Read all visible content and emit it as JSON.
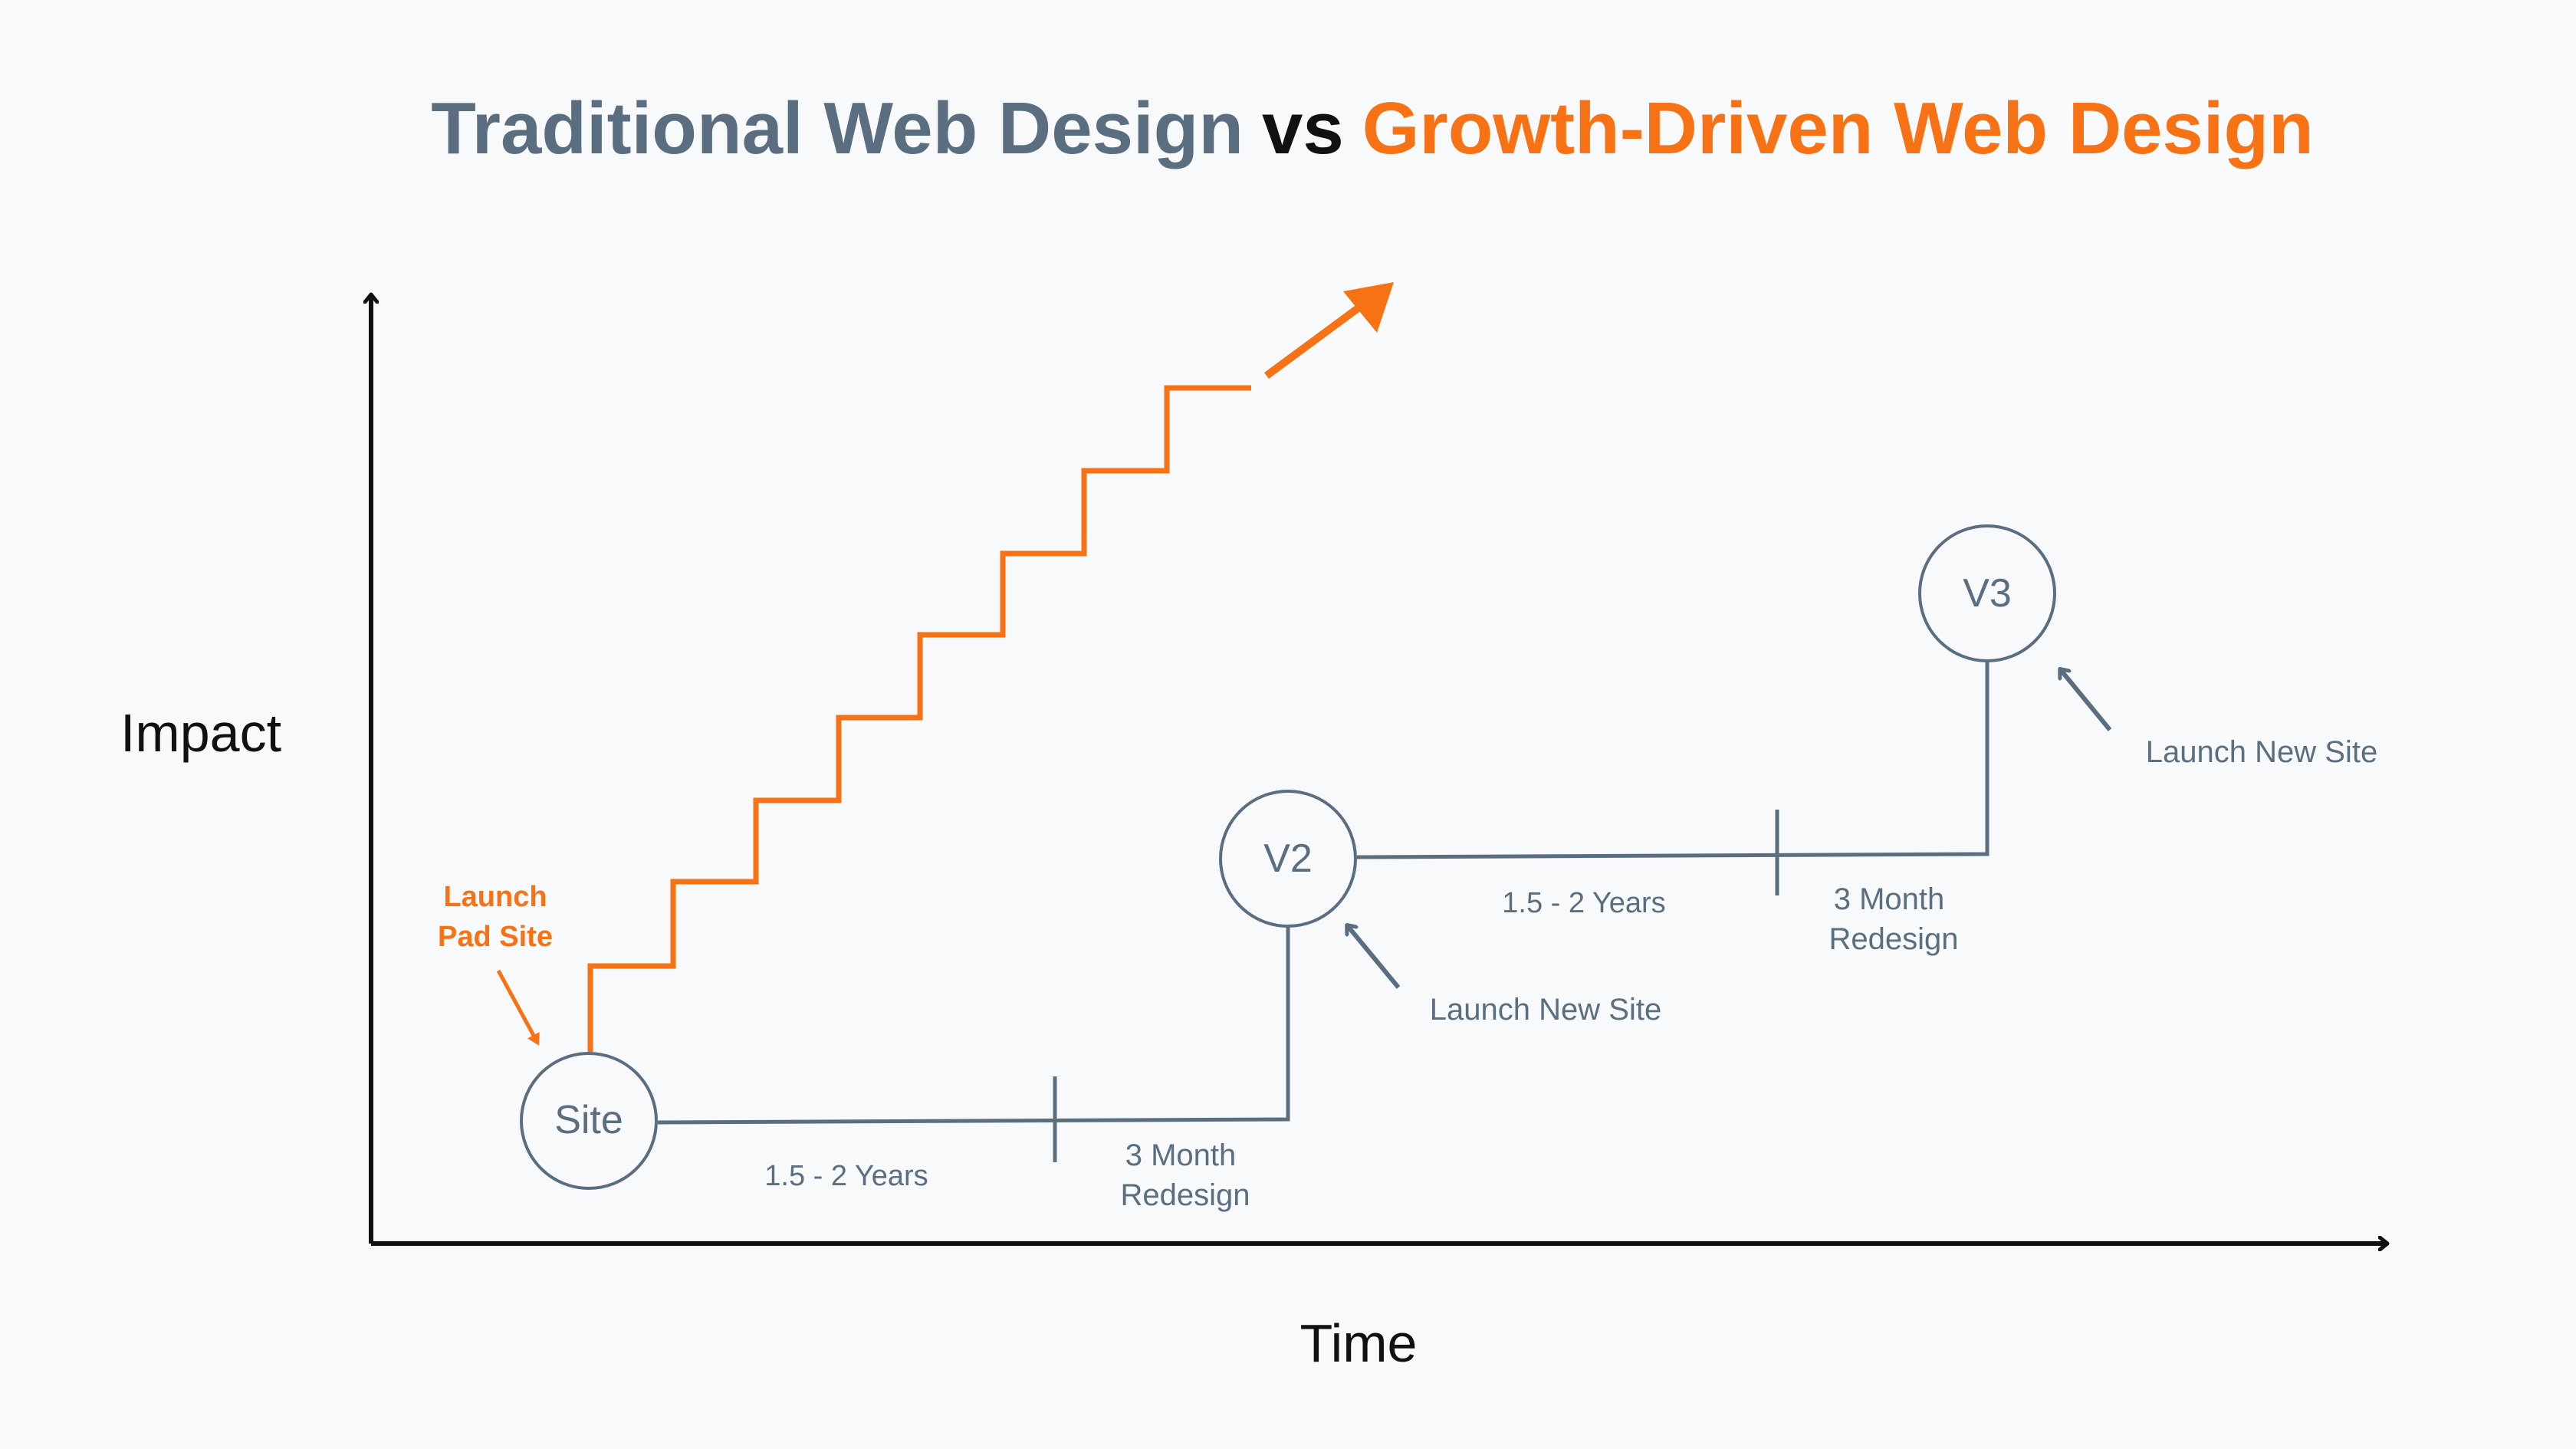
{
  "title": {
    "part1": "Traditional Web Design",
    "vs": "vs",
    "part2": "Growth-Driven Web Design"
  },
  "axes": {
    "y_label": "Impact",
    "x_label": "Time"
  },
  "growth_driven": {
    "label_line1": "Launch",
    "label_line2": "Pad Site"
  },
  "traditional": {
    "nodes": {
      "site": "Site",
      "v2": "V2",
      "v3": "V3"
    },
    "segment1": {
      "duration": "1.5 - 2 Years",
      "redesign_line1": "3 Month",
      "redesign_line2": "Redesign"
    },
    "segment2": {
      "duration": "1.5 - 2 Years",
      "redesign_line1": "3 Month",
      "redesign_line2": "Redesign"
    },
    "launch_v2": "Launch New Site",
    "launch_v3": "Launch New Site"
  },
  "colors": {
    "traditional": "#5a6e80",
    "growth": "#f77215",
    "axis": "#111111",
    "background": "#f7f9fb"
  }
}
